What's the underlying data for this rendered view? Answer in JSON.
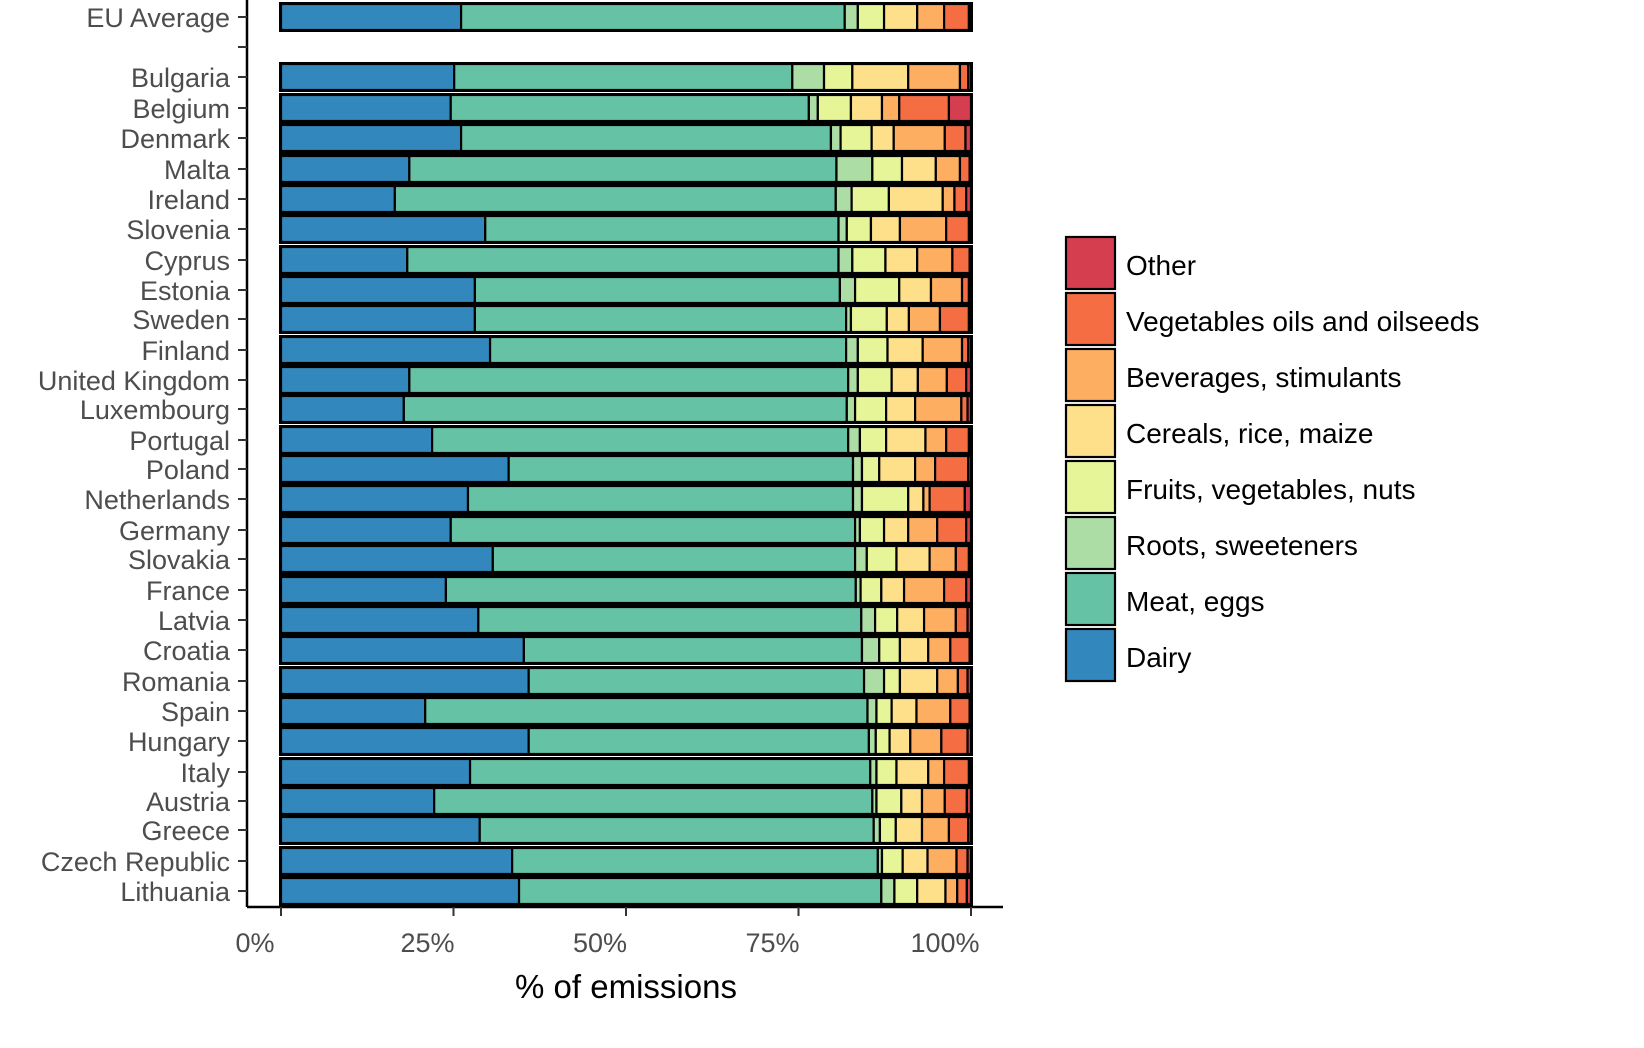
{
  "chart_data": {
    "type": "bar",
    "orientation": "horizontal",
    "stacked": true,
    "title": "",
    "xlabel": "% of emissions",
    "ylabel": "",
    "xlim": [
      0,
      100
    ],
    "x_ticks": [
      "0%",
      "25%",
      "50%",
      "75%",
      "100%"
    ],
    "x_tick_values": [
      0,
      25,
      50,
      75,
      100
    ],
    "grid": false,
    "legend_position": "right",
    "legend_title": "",
    "series_order": [
      "Dairy",
      "Meat, eggs",
      "Roots, sweeteners",
      "Fruits, vegetables, nuts",
      "Cereals, rice, maize",
      "Beverages, stimulants",
      "Vegetables oils and oilseeds",
      "Other"
    ],
    "legend_display_order": [
      "Other",
      "Vegetables oils and oilseeds",
      "Beverages, stimulants",
      "Cereals, rice, maize",
      "Fruits, vegetables, nuts",
      "Roots, sweeteners",
      "Meat, eggs",
      "Dairy"
    ],
    "colors": {
      "Dairy": "#3288bd",
      "Meat, eggs": "#66c2a5",
      "Roots, sweeteners": "#abdda4",
      "Fruits, vegetables, nuts": "#e6f598",
      "Cereals, rice, maize": "#fee08b",
      "Beverages, stimulants": "#fdae61",
      "Vegetables oils and oilseeds": "#f46d43",
      "Other": "#d53e4f"
    },
    "categories": [
      "EU Average",
      "Bulgaria",
      "Belgium",
      "Denmark",
      "Malta",
      "Ireland",
      "Slovenia",
      "Cyprus",
      "Estonia",
      "Sweden",
      "Finland",
      "United Kingdom",
      "Luxembourg",
      "Portugal",
      "Poland",
      "Netherlands",
      "Germany",
      "Slovakia",
      "France",
      "Latvia",
      "Croatia",
      "Romania",
      "Spain",
      "Hungary",
      "Italy",
      "Austria",
      "Greece",
      "Czech Republic",
      "Lithuania"
    ],
    "groups": [
      [
        "EU Average"
      ],
      [
        "Bulgaria"
      ],
      [
        "Belgium",
        "Denmark",
        "Malta",
        "Ireland",
        "Slovenia"
      ],
      [
        "Cyprus",
        "Estonia",
        "Sweden"
      ],
      [
        "Finland",
        "United Kingdom",
        "Luxembourg"
      ],
      [
        "Portugal",
        "Poland",
        "Netherlands",
        "Germany",
        "Slovakia",
        "France",
        "Latvia",
        "Croatia"
      ],
      [
        "Romania",
        "Spain",
        "Hungary"
      ],
      [
        "Italy",
        "Austria",
        "Greece"
      ],
      [
        "Czech Republic",
        "Lithuania"
      ]
    ],
    "series": [
      {
        "name": "Dairy",
        "values": [
          26.1,
          25.1,
          24.6,
          26.1,
          18.6,
          16.5,
          29.6,
          18.3,
          28.1,
          28.1,
          30.3,
          18.6,
          17.8,
          21.9,
          33.0,
          27.1,
          24.6,
          30.7,
          23.9,
          28.6,
          35.2,
          35.9,
          20.9,
          35.9,
          27.4,
          22.2,
          28.8,
          33.5,
          34.5
        ]
      },
      {
        "name": "Meat, eggs",
        "values": [
          55.6,
          49.0,
          51.9,
          53.6,
          61.9,
          63.9,
          51.2,
          62.5,
          52.9,
          53.8,
          51.6,
          63.6,
          64.2,
          60.3,
          49.9,
          55.8,
          58.6,
          52.5,
          59.4,
          55.5,
          49.0,
          48.6,
          64.1,
          49.3,
          58.0,
          63.5,
          57.1,
          53.0,
          52.5
        ]
      },
      {
        "name": "Roots, sweeteners",
        "values": [
          1.9,
          4.6,
          1.3,
          1.4,
          5.2,
          2.3,
          1.2,
          2.0,
          2.2,
          0.7,
          1.7,
          1.4,
          1.2,
          1.7,
          1.3,
          1.3,
          0.7,
          1.7,
          0.7,
          2.0,
          2.5,
          2.9,
          1.3,
          1.0,
          0.9,
          0.6,
          0.9,
          0.6,
          1.9
        ]
      },
      {
        "name": "Fruits, vegetables, nuts",
        "values": [
          3.8,
          4.1,
          4.8,
          4.5,
          4.3,
          5.4,
          3.5,
          4.8,
          6.4,
          5.2,
          4.3,
          4.9,
          4.5,
          3.8,
          2.5,
          6.7,
          3.5,
          4.3,
          3.0,
          3.2,
          3.0,
          2.3,
          2.2,
          2.0,
          2.9,
          3.6,
          2.3,
          3.0,
          3.3
        ]
      },
      {
        "name": "Cereals, rice, maize",
        "values": [
          4.8,
          8.1,
          4.5,
          3.2,
          4.9,
          7.8,
          4.2,
          4.6,
          4.6,
          3.2,
          5.1,
          3.8,
          4.2,
          5.7,
          5.2,
          2.2,
          3.5,
          4.8,
          3.3,
          3.9,
          4.1,
          5.4,
          3.6,
          3.0,
          4.6,
          3.0,
          3.8,
          3.6,
          4.1
        ]
      },
      {
        "name": "Beverages, stimulants",
        "values": [
          3.9,
          7.5,
          2.5,
          7.4,
          3.5,
          1.7,
          6.7,
          5.1,
          4.5,
          4.5,
          5.7,
          4.2,
          6.7,
          3.0,
          2.9,
          0.9,
          4.2,
          3.8,
          5.8,
          4.6,
          3.2,
          3.0,
          4.9,
          4.5,
          2.3,
          3.3,
          3.9,
          4.2,
          1.7
        ]
      },
      {
        "name": "Vegetables oils and oilseeds",
        "values": [
          3.6,
          1.2,
          7.2,
          3.0,
          1.4,
          1.7,
          3.3,
          2.5,
          1.0,
          4.2,
          0.9,
          2.8,
          0.9,
          3.3,
          4.8,
          5.1,
          4.2,
          1.9,
          3.2,
          1.7,
          2.8,
          1.4,
          2.8,
          3.8,
          3.6,
          3.2,
          2.8,
          1.6,
          1.4
        ]
      },
      {
        "name": "Other",
        "values": [
          0.3,
          0.4,
          3.2,
          0.8,
          0.2,
          0.7,
          0.3,
          0.2,
          0.3,
          0.3,
          0.4,
          0.7,
          0.5,
          0.3,
          0.4,
          0.9,
          0.7,
          0.3,
          0.7,
          0.5,
          0.2,
          0.5,
          0.2,
          0.5,
          0.3,
          0.6,
          0.4,
          0.5,
          0.6
        ]
      }
    ]
  }
}
